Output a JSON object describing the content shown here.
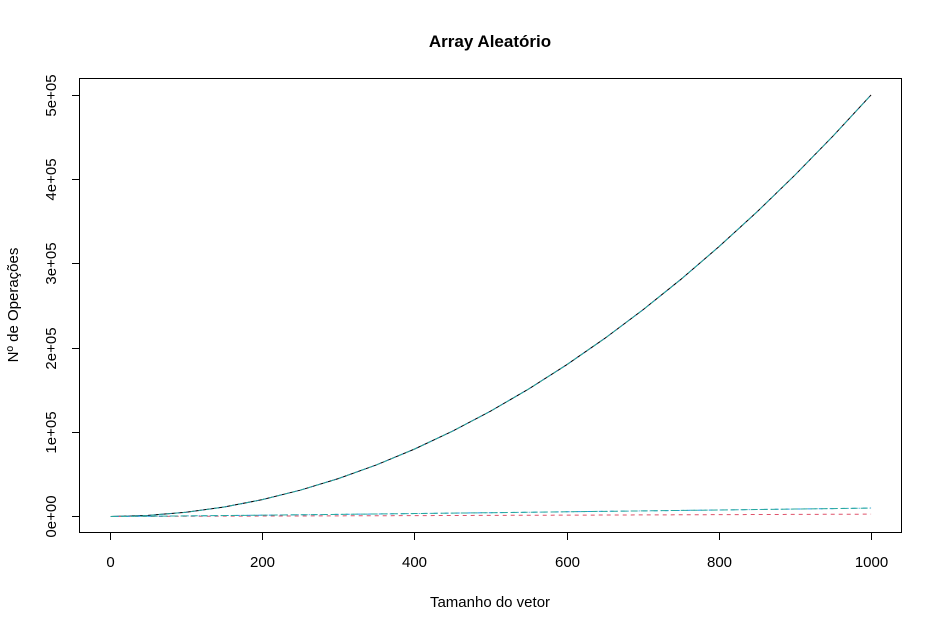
{
  "chart_data": {
    "type": "line",
    "title": "Array Aleatório",
    "xlabel": "Tamanho do vetor",
    "ylabel": "Nº de Operações",
    "xlim": [
      -40,
      1040
    ],
    "ylim": [
      -19000,
      519000
    ],
    "x_ticks": [
      0,
      200,
      400,
      600,
      800,
      1000
    ],
    "x_tick_labels": [
      "0",
      "200",
      "400",
      "600",
      "800",
      "1000"
    ],
    "y_ticks": [
      0,
      100000,
      200000,
      300000,
      400000,
      500000
    ],
    "y_tick_labels": [
      "0e+00",
      "1e+05",
      "2e+05",
      "3e+05",
      "4e+05",
      "5e+05"
    ],
    "grid": false,
    "x": [
      1,
      50,
      100,
      150,
      200,
      250,
      300,
      350,
      400,
      450,
      500,
      550,
      600,
      650,
      700,
      750,
      800,
      850,
      900,
      950,
      1000
    ],
    "series": [
      {
        "color": "#000000",
        "dash": "solid",
        "values": [
          0,
          1225,
          4950,
          11175,
          19900,
          31125,
          44850,
          61075,
          79800,
          101025,
          124750,
          150975,
          179700,
          210925,
          244650,
          280875,
          319600,
          360825,
          404550,
          450775,
          499500
        ]
      },
      {
        "color": "#2297E6",
        "dash": "dotted",
        "values": [
          0,
          1225,
          4950,
          11175,
          19900,
          31125,
          44850,
          61075,
          79800,
          101025,
          124750,
          150975,
          179700,
          210925,
          244650,
          280875,
          319600,
          360825,
          404550,
          450775,
          499500
        ]
      },
      {
        "color": "#28A99E",
        "dash": "dashed",
        "values": [
          0,
          1225,
          4950,
          11175,
          19900,
          31125,
          44850,
          61075,
          79800,
          101025,
          124750,
          150975,
          179700,
          210925,
          244650,
          280875,
          319600,
          360825,
          404550,
          450775,
          499500
        ]
      },
      {
        "color": "#DF536B",
        "dash": "dashed",
        "values": [
          0,
          100,
          250,
          350,
          500,
          600,
          750,
          850,
          1000,
          1150,
          1300,
          1450,
          1550,
          1700,
          1850,
          2000,
          2150,
          2300,
          2450,
          2600,
          2750
        ]
      },
      {
        "color": "#2297E6",
        "dash": "dashdot",
        "values": [
          0,
          280,
          660,
          1080,
          1530,
          2000,
          2470,
          2960,
          3460,
          3960,
          4480,
          5000,
          5530,
          6060,
          6600,
          7150,
          7700,
          8250,
          8800,
          9360,
          9970
        ]
      },
      {
        "color": "#28A99E",
        "dash": "longdash",
        "values": [
          0,
          280,
          660,
          1080,
          1530,
          2000,
          2470,
          2960,
          3460,
          3960,
          4480,
          5000,
          5530,
          6060,
          6600,
          7150,
          7700,
          8250,
          8800,
          9360,
          9970
        ]
      }
    ]
  }
}
